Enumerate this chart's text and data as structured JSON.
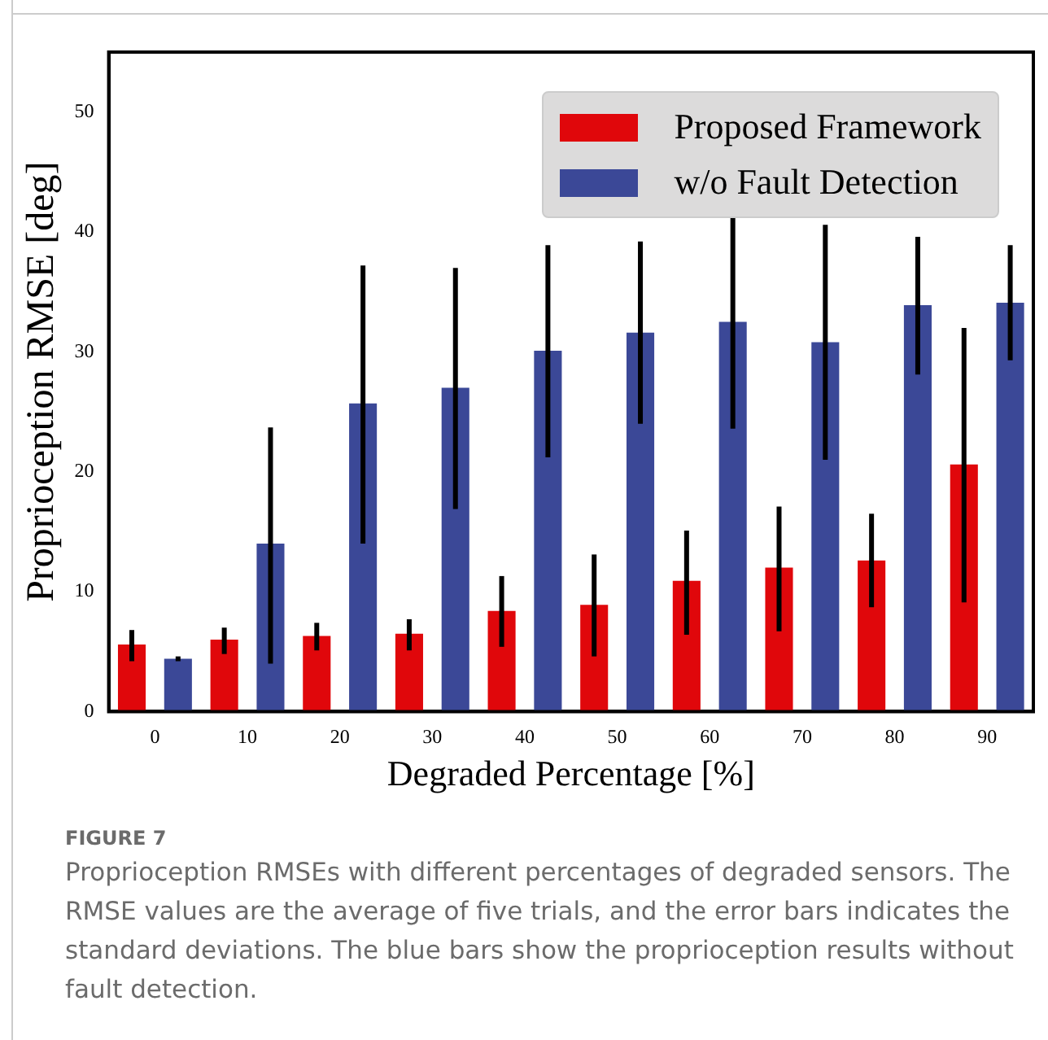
{
  "chart_data": {
    "type": "bar",
    "xlabel": "Degraded Percentage [%]",
    "ylabel": "Proprioception RMSE [deg]",
    "categories": [
      "0",
      "10",
      "20",
      "30",
      "40",
      "50",
      "60",
      "70",
      "80",
      "90"
    ],
    "series": [
      {
        "name": "Proposed Framework",
        "color": "#e0070b",
        "values": [
          5.6,
          6.0,
          6.3,
          6.5,
          8.4,
          8.9,
          10.9,
          12.0,
          12.6,
          20.6
        ],
        "errors": [
          [
            4.2,
            6.8
          ],
          [
            4.8,
            7.0
          ],
          [
            5.1,
            7.4
          ],
          [
            5.1,
            7.7
          ],
          [
            5.4,
            11.3
          ],
          [
            4.6,
            13.1
          ],
          [
            6.4,
            15.1
          ],
          [
            6.7,
            17.1
          ],
          [
            8.7,
            16.5
          ],
          [
            9.1,
            32.0
          ]
        ]
      },
      {
        "name": "w/o Fault Detection",
        "color": "#3b4897",
        "values": [
          4.4,
          14.0,
          25.7,
          27.0,
          30.1,
          31.6,
          32.5,
          30.8,
          33.9,
          34.1
        ],
        "errors": [
          [
            4.2,
            4.6
          ],
          [
            4.0,
            23.7
          ],
          [
            14.0,
            37.2
          ],
          [
            16.9,
            37.0
          ],
          [
            21.2,
            38.9
          ],
          [
            24.0,
            39.2
          ],
          [
            23.6,
            41.4
          ],
          [
            21.0,
            40.6
          ],
          [
            28.1,
            39.6
          ],
          [
            29.3,
            38.9
          ]
        ]
      }
    ],
    "ylim": [
      0,
      55
    ],
    "yticks": [
      0,
      10,
      20,
      30,
      40,
      50
    ],
    "grid": false,
    "legend": "top right",
    "annotations": [
      "FIGURE 7",
      "Proprioception RMSEs with different percentages of degraded sensors. The RMSE values are the average of five trials, and the error bars indicates the standard deviations. The blue bars show the proprioception results without fault detection."
    ]
  }
}
